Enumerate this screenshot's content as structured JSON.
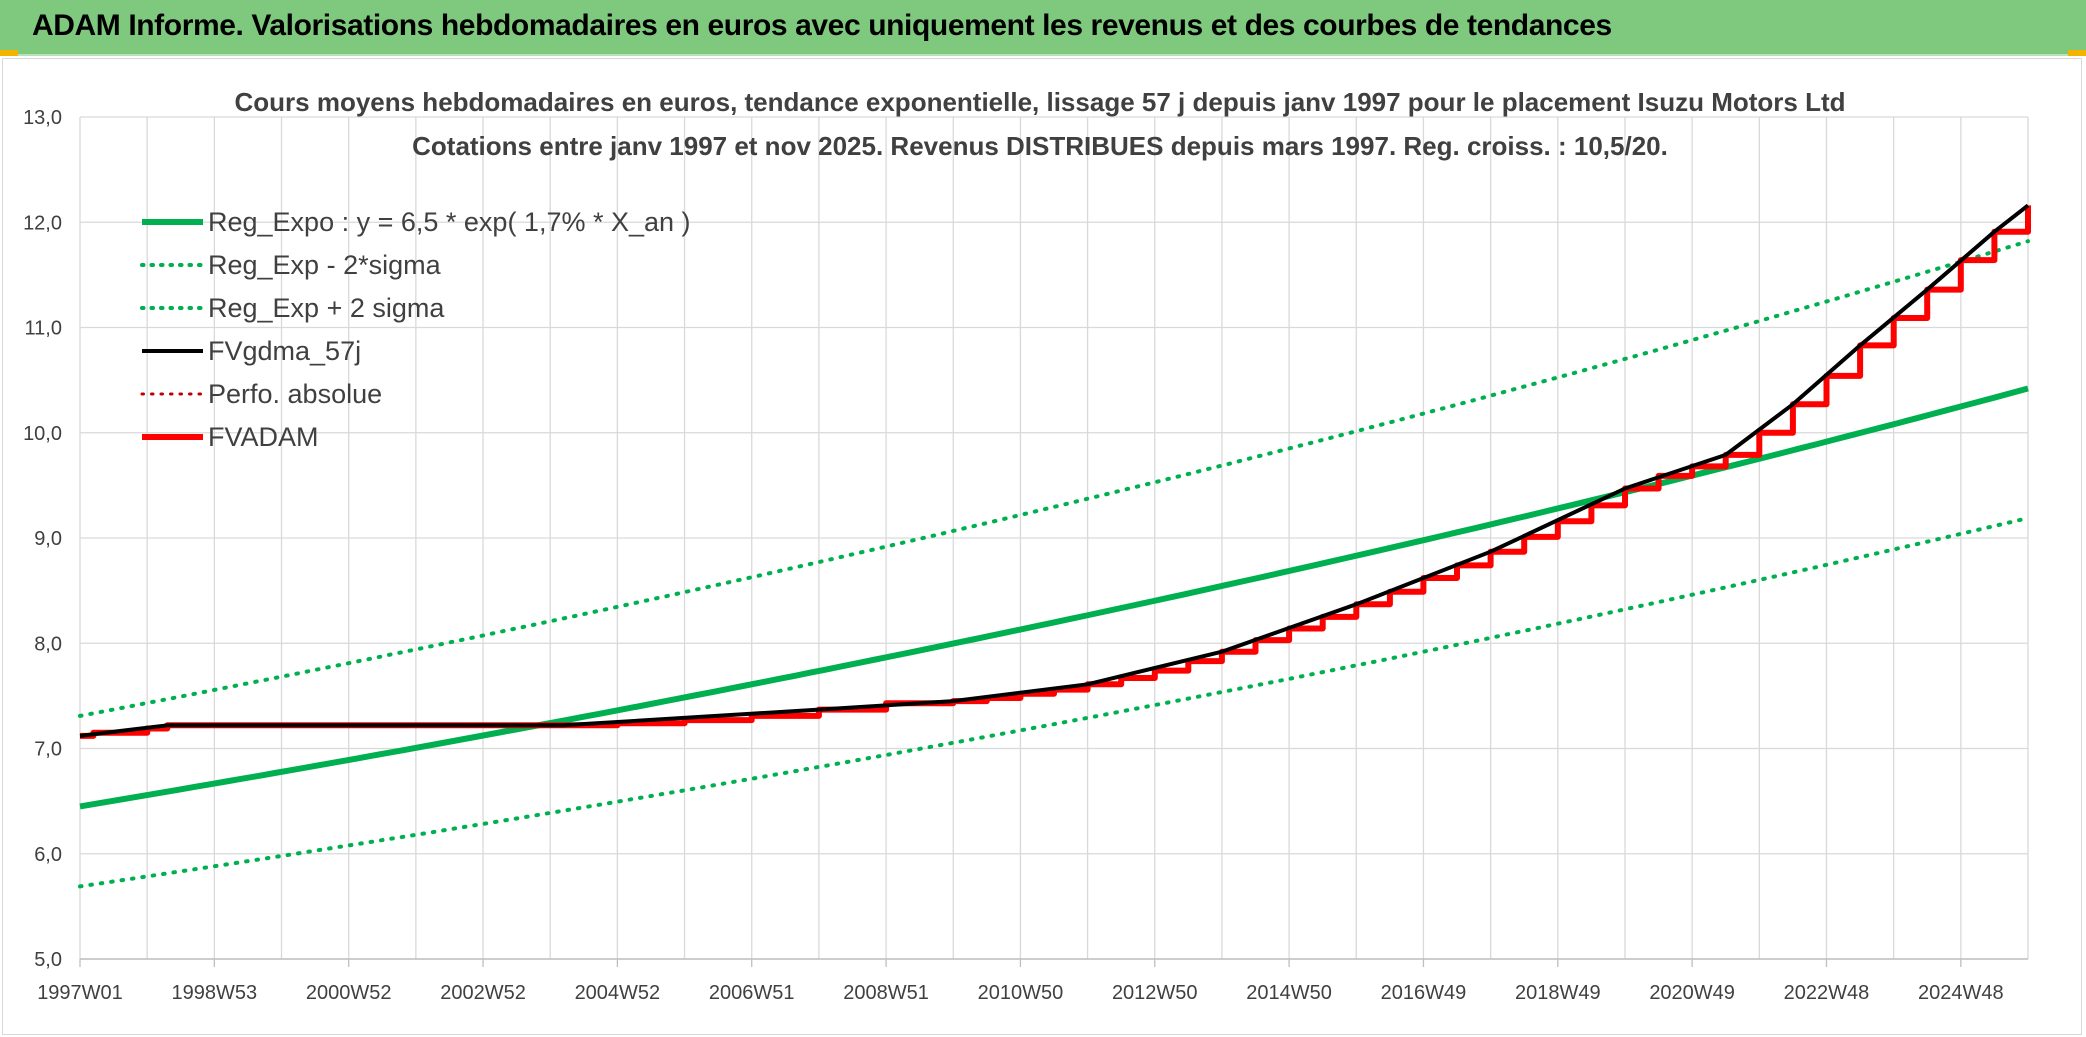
{
  "header": {
    "title": "ADAM Informe. Valorisations hebdomadaires en euros avec uniquement les revenus et des courbes de tendances"
  },
  "colors": {
    "banner": "#7fc97f",
    "trend": "#00b050",
    "fvgdma": "#000000",
    "fvadam": "#ff0000",
    "perfo": "#c00000",
    "grid": "#d9d9d9"
  },
  "chart_data": {
    "type": "line",
    "title_line1": "Cours moyens hebdomadaires en euros, tendance exponentielle, lissage 57 j depuis janv 1997 pour le placement Isuzu Motors Ltd",
    "title_line2": "Cotations entre janv 1997 et nov 2025. Revenus DISTRIBUES depuis mars 1997. Reg. croiss. : 10,5/20.",
    "xlabel": "",
    "ylabel": "",
    "ylim": [
      5.0,
      13.0
    ],
    "xlim": [
      1997.0,
      2026.0
    ],
    "y_ticks": [
      "5,0",
      "6,0",
      "7,0",
      "8,0",
      "9,0",
      "10,0",
      "11,0",
      "12,0",
      "13,0"
    ],
    "x_ticks": [
      {
        "label": "1997W01",
        "x": 1997.0
      },
      {
        "label": "1998W53",
        "x": 1999.0
      },
      {
        "label": "2000W52",
        "x": 2001.0
      },
      {
        "label": "2002W52",
        "x": 2003.0
      },
      {
        "label": "2004W52",
        "x": 2005.0
      },
      {
        "label": "2006W51",
        "x": 2007.0
      },
      {
        "label": "2008W51",
        "x": 2009.0
      },
      {
        "label": "2010W50",
        "x": 2011.0
      },
      {
        "label": "2012W50",
        "x": 2013.0
      },
      {
        "label": "2014W50",
        "x": 2015.0
      },
      {
        "label": "2016W49",
        "x": 2017.0
      },
      {
        "label": "2018W49",
        "x": 2019.0
      },
      {
        "label": "2020W49",
        "x": 2021.0
      },
      {
        "label": "2022W48",
        "x": 2023.0
      },
      {
        "label": "2024W48",
        "x": 2025.0
      }
    ],
    "grid": true,
    "legend_position": "top-left",
    "legend": [
      {
        "name": "Reg_Expo : y = 6,5 * exp( 1,7% *  X_an )",
        "color": "#00b050",
        "style": "solid",
        "width": 6
      },
      {
        "name": "Reg_Exp - 2*sigma",
        "color": "#00b050",
        "style": "dotted",
        "width": 4
      },
      {
        "name": "Reg_Exp + 2 sigma",
        "color": "#00b050",
        "style": "dotted",
        "width": 4
      },
      {
        "name": "FVgdma_57j",
        "color": "#000000",
        "style": "solid",
        "width": 4
      },
      {
        "name": "Perfo. absolue",
        "color": "#c00000",
        "style": "dotted",
        "width": 3
      },
      {
        "name": "FVADAM",
        "color": "#ff0000",
        "style": "solid",
        "width": 6
      }
    ],
    "series": [
      {
        "name": "Reg_Expo : y = 6,5 * exp( 1,7% *  X_an )",
        "x": [
          1997.0,
          2026.0
        ],
        "y": [
          6.45,
          10.42
        ],
        "curve": "exponential"
      },
      {
        "name": "Reg_Exp - 2*sigma",
        "x": [
          1997.0,
          2026.0
        ],
        "y": [
          5.69,
          9.19
        ],
        "curve": "exponential"
      },
      {
        "name": "Reg_Exp + 2 sigma",
        "x": [
          1997.0,
          2026.0
        ],
        "y": [
          7.31,
          11.82
        ],
        "curve": "exponential"
      },
      {
        "name": "FVADAM",
        "x": [
          1997.0,
          1997.2,
          1998.0,
          1998.3,
          2004.2,
          2005.0,
          2006.0,
          2007.0,
          2008.0,
          2009.0,
          2010.0,
          2010.5,
          2011.0,
          2011.5,
          2012.0,
          2012.5,
          2013.0,
          2013.5,
          2014.0,
          2014.5,
          2015.0,
          2015.5,
          2016.0,
          2016.5,
          2017.0,
          2017.5,
          2018.0,
          2018.5,
          2019.0,
          2019.5,
          2020.0,
          2020.5,
          2021.0,
          2021.5,
          2022.0,
          2022.5,
          2023.0,
          2023.5,
          2024.0,
          2024.5,
          2025.0,
          2025.5,
          2026.0
        ],
        "y": [
          7.12,
          7.15,
          7.19,
          7.22,
          7.22,
          7.24,
          7.27,
          7.31,
          7.37,
          7.43,
          7.45,
          7.48,
          7.52,
          7.56,
          7.61,
          7.67,
          7.74,
          7.83,
          7.92,
          8.03,
          8.14,
          8.25,
          8.37,
          8.49,
          8.62,
          8.74,
          8.87,
          9.01,
          9.16,
          9.31,
          9.47,
          9.59,
          9.68,
          9.79,
          10.0,
          10.27,
          10.54,
          10.83,
          11.09,
          11.36,
          11.64,
          11.91,
          12.16
        ],
        "step": true
      },
      {
        "name": "FVgdma_57j",
        "x": [
          1997.0,
          1998.3,
          2004.2,
          2008.0,
          2010.0,
          2012.0,
          2014.0,
          2016.0,
          2018.0,
          2020.0,
          2021.5,
          2022.5,
          2023.5,
          2024.5,
          2025.5,
          2026.0
        ],
        "y": [
          7.12,
          7.22,
          7.22,
          7.37,
          7.45,
          7.61,
          7.92,
          8.37,
          8.87,
          9.47,
          9.79,
          10.27,
          10.83,
          11.36,
          11.91,
          12.16
        ]
      }
    ]
  }
}
